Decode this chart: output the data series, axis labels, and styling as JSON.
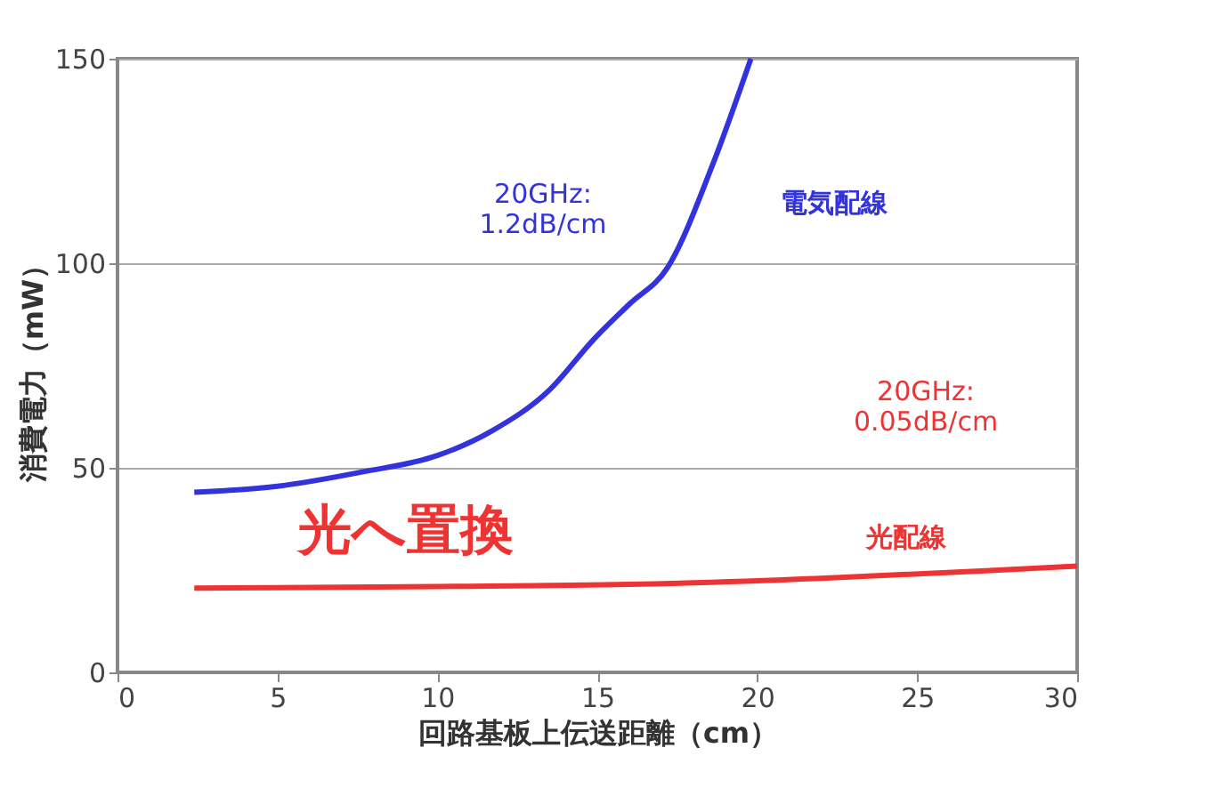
{
  "chart_data": {
    "type": "line",
    "xlabel": "回路基板上伝送距離（cm）",
    "ylabel": "消費電力（mW）",
    "xlim": [
      0,
      30
    ],
    "xticks": [
      0,
      5,
      10,
      15,
      20,
      25,
      30
    ],
    "ylim": [
      0,
      150
    ],
    "yticks": [
      0,
      50,
      100,
      150
    ],
    "grid": "y",
    "marker": "none",
    "line_style": "solid",
    "series": [
      {
        "name": "電気配線",
        "color": "#3333dd",
        "x": [
          2.4,
          5,
          7.65,
          10,
          11.7,
          13.5,
          14.9,
          16,
          17.2,
          18.6,
          19.8
        ],
        "values": [
          44,
          45.5,
          49,
          53,
          59,
          69,
          81.5,
          90,
          99,
          124,
          150
        ]
      },
      {
        "name": "光配線",
        "color": "#ee3333",
        "x": [
          2.4,
          10,
          16,
          22,
          27,
          30
        ],
        "values": [
          20.6,
          21,
          21.5,
          23,
          24.8,
          26
        ]
      }
    ],
    "annotations": [
      "20GHz:\n 1.2dB/cm",
      "20GHz:\n 0.05dB/cm",
      "光へ置換"
    ]
  }
}
